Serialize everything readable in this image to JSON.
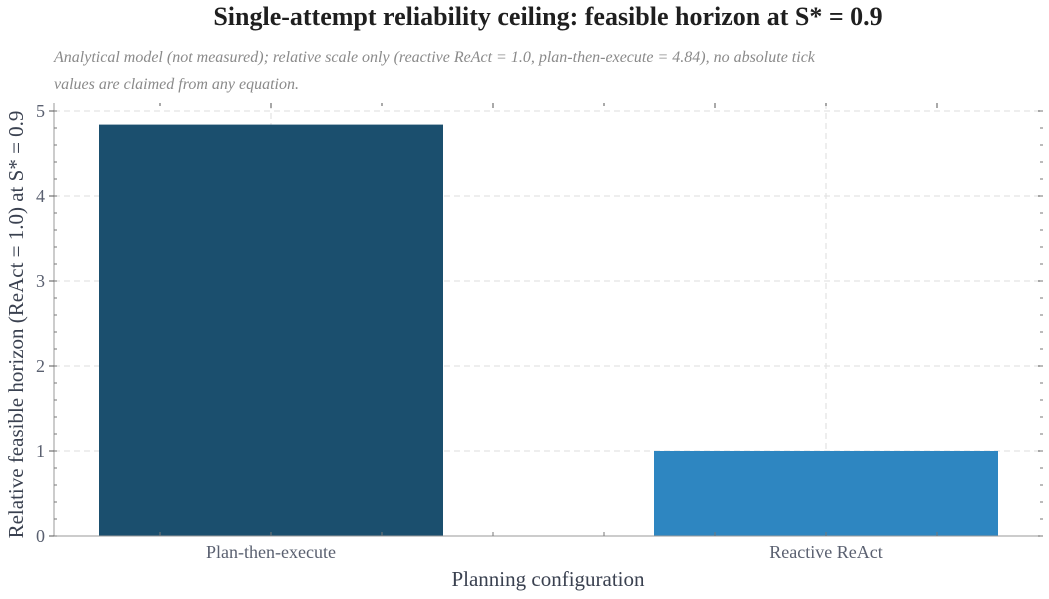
{
  "chart_data": {
    "type": "bar",
    "title": "Single-attempt reliability ceiling: feasible horizon at S* = 0.9",
    "subtitle": "Analytical model (not measured); relative scale only (reactive ReAct = 1.0, plan-then-execute = 4.84), no absolute tick values are claimed from any equation.",
    "xlabel": "Planning configuration",
    "ylabel": "Relative feasible horizon (ReAct = 1.0) at S* = 0.9",
    "categories": [
      "Plan-then-execute",
      "Reactive ReAct"
    ],
    "values": [
      4.84,
      1.0
    ],
    "colors": [
      "#1b4f6e",
      "#2e86c1"
    ],
    "ylim": [
      0,
      5
    ],
    "yticks": [
      0,
      1,
      2,
      3,
      4,
      5
    ],
    "grid": true
  }
}
